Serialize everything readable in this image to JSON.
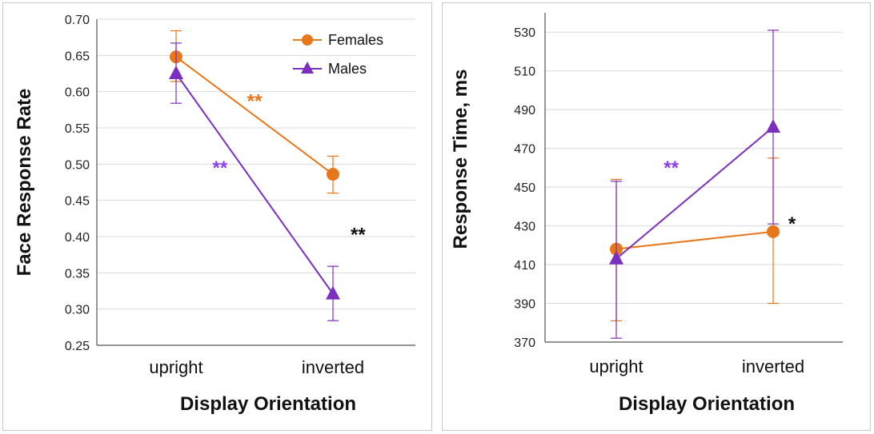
{
  "colors": {
    "females": "#E8761B",
    "males": "#7B2FBE",
    "male_annotation": "#8B3FE8",
    "black": "#111111",
    "grid": "#d9d9d9"
  },
  "chart_data": [
    {
      "type": "line",
      "categories": [
        "upright",
        "inverted"
      ],
      "xlabel": "Display  Orientation",
      "ylabel": "Face Response Rate",
      "ylim": [
        0.25,
        0.7
      ],
      "yticks": [
        "0.25",
        "0.30",
        "0.35",
        "0.40",
        "0.45",
        "0.50",
        "0.55",
        "0.60",
        "0.65",
        "0.70"
      ],
      "grid": true,
      "legend": "top-right",
      "series": [
        {
          "name": "Females",
          "marker": "circle",
          "values": [
            0.648,
            0.486
          ],
          "err_low": [
            0.614,
            0.46
          ],
          "err_high": [
            0.684,
            0.511
          ]
        },
        {
          "name": "Males",
          "marker": "triangle",
          "values": [
            0.625,
            0.321
          ],
          "err_low": [
            0.584,
            0.284
          ],
          "err_high": [
            0.667,
            0.359
          ]
        }
      ],
      "annotations": [
        {
          "text": "**",
          "color_key": "females",
          "x": 0.5,
          "y": 0.587
        },
        {
          "text": "**",
          "color_key": "male_annotation",
          "x": 0.28,
          "y": 0.495
        },
        {
          "text": "**",
          "color_key": "black",
          "x": 1.16,
          "y": 0.403
        }
      ]
    },
    {
      "type": "line",
      "categories": [
        "upright",
        "inverted"
      ],
      "xlabel": "Display  Orientation",
      "ylabel": "Response Time, ms",
      "ylim": [
        370,
        540
      ],
      "yticks": [
        "370",
        "390",
        "410",
        "430",
        "450",
        "470",
        "490",
        "510",
        "530"
      ],
      "grid": true,
      "series": [
        {
          "name": "Females",
          "marker": "circle",
          "values": [
            418,
            427
          ],
          "err_low": [
            381,
            390
          ],
          "err_high": [
            454,
            465
          ]
        },
        {
          "name": "Males",
          "marker": "triangle",
          "values": [
            413,
            481
          ],
          "err_low": [
            372,
            431
          ],
          "err_high": [
            453,
            531
          ]
        }
      ],
      "annotations": [
        {
          "text": "**",
          "color_key": "male_annotation",
          "x": 0.35,
          "y": 460
        },
        {
          "text": "*",
          "color_key": "black",
          "x": 1.12,
          "y": 431
        }
      ]
    }
  ]
}
